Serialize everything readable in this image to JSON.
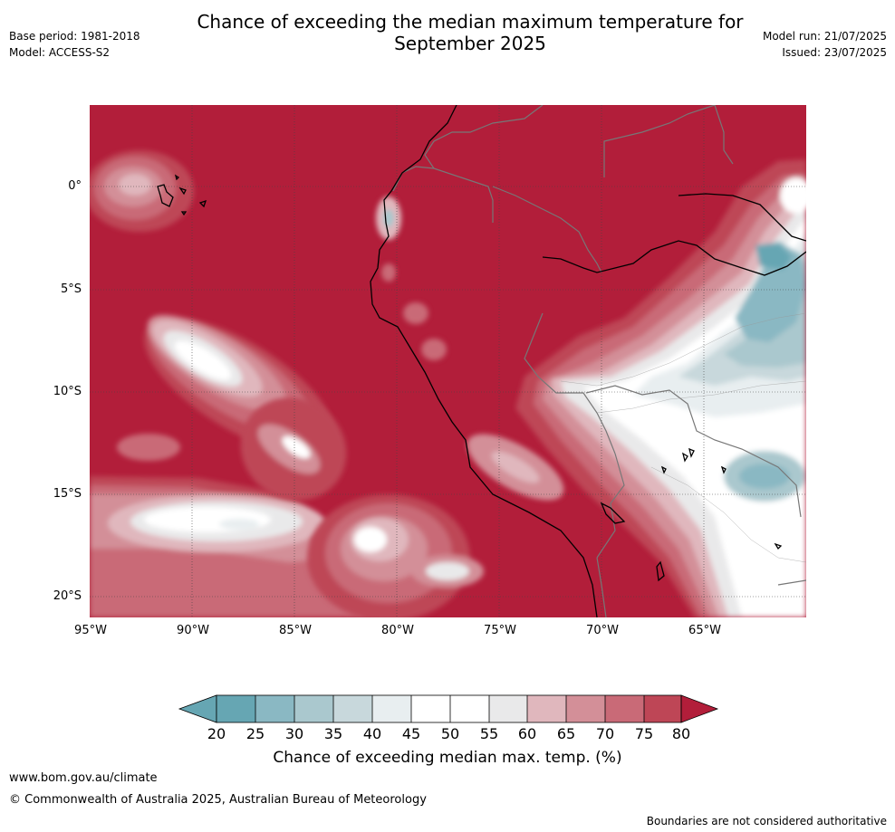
{
  "header": {
    "title_line1": "Chance of exceeding the median maximum temperature for",
    "title_line2": "September 2025",
    "base_period": "Base period: 1981-2018",
    "model": "Model: ACCESS-S2",
    "model_run": "Model run: 21/07/2025",
    "issued": "Issued: 23/07/2025"
  },
  "map": {
    "lat_ticks": [
      "0°",
      "5°S",
      "10°S",
      "15°S",
      "20°S"
    ],
    "lon_ticks": [
      "95°W",
      "90°W",
      "85°W",
      "80°W",
      "75°W",
      "70°W",
      "65°W"
    ],
    "colors": {
      "c20": "#66a6b3",
      "c25": "#8ab8c3",
      "c30": "#aac8ce",
      "c35": "#c8d8dc",
      "c40": "#e8eef0",
      "c45": "#ffffff",
      "c55": "#e9e9ea",
      "c60": "#e0b7bd",
      "c65": "#d38f98",
      "c70": "#c96a77",
      "c75": "#be4656",
      "c80": "#b21e3a"
    }
  },
  "colorbar": {
    "ticks": [
      "20",
      "25",
      "30",
      "35",
      "40",
      "45",
      "50",
      "55",
      "60",
      "65",
      "70",
      "75",
      "80"
    ],
    "label": "Chance of exceeding median max. temp. (%)"
  },
  "footer": {
    "website": "www.bom.gov.au/climate",
    "copyright": "© Commonwealth of Australia 2025, Australian Bureau of Meteorology",
    "disclaimer": "Boundaries are not considered authoritative"
  }
}
